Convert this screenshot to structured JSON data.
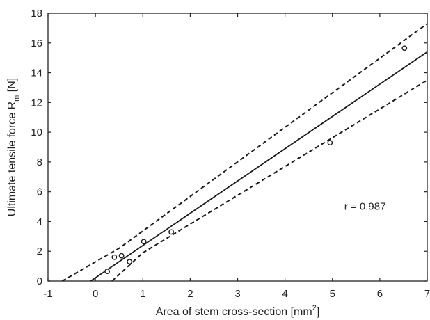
{
  "chart_data": {
    "type": "scatter",
    "title": "",
    "xlabel": {
      "text": "Area of stem cross-section [mm",
      "sup": "2",
      "tail": "]"
    },
    "ylabel": {
      "text": "Ultimate tensile force R",
      "sub": "m",
      "tail": " [N]"
    },
    "xlim": [
      -1,
      7
    ],
    "ylim": [
      0,
      18
    ],
    "xticks": [
      -1,
      0,
      1,
      2,
      3,
      4,
      5,
      6,
      7
    ],
    "yticks": [
      0,
      2,
      4,
      6,
      8,
      10,
      12,
      14,
      16,
      18
    ],
    "grid": false,
    "points": [
      {
        "x": 0.25,
        "y": 0.65
      },
      {
        "x": 0.4,
        "y": 1.6
      },
      {
        "x": 0.55,
        "y": 1.7
      },
      {
        "x": 0.72,
        "y": 1.3
      },
      {
        "x": 1.02,
        "y": 2.65
      },
      {
        "x": 1.6,
        "y": 3.3
      },
      {
        "x": 4.95,
        "y": 9.3
      },
      {
        "x": 6.52,
        "y": 15.65
      }
    ],
    "fit_line": [
      {
        "x": -0.1,
        "y": 0.0
      },
      {
        "x": 7.0,
        "y": 15.4
      }
    ],
    "upper_band": [
      {
        "x": -0.7,
        "y": 0.0
      },
      {
        "x": 0.5,
        "y": 2.2
      },
      {
        "x": 7.0,
        "y": 17.3
      }
    ],
    "lower_band": [
      {
        "x": 0.35,
        "y": 0.0
      },
      {
        "x": 1.0,
        "y": 1.9
      },
      {
        "x": 7.0,
        "y": 13.5
      }
    ],
    "annotation": {
      "text": "r = 0.987",
      "x": 5.25,
      "y": 4.8
    }
  }
}
